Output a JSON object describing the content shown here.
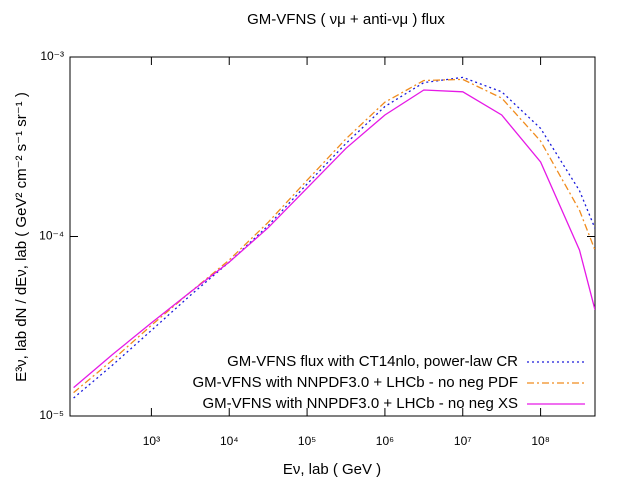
{
  "chart_data": {
    "type": "line",
    "title": "GM-VFNS    ( νμ + anti-νμ )    flux",
    "x_label": "Eν, lab    ( GeV )",
    "y_label": "E³ν, lab  dN / dEν, lab   ( GeV² cm⁻² s⁻¹ sr⁻¹ )",
    "x_log": true,
    "y_log": true,
    "xlim": [
      90,
      500000000
    ],
    "ylim": [
      1e-05,
      0.001
    ],
    "xticks": [
      {
        "value": 1000,
        "label": "10³"
      },
      {
        "value": 10000,
        "label": "10⁴"
      },
      {
        "value": 100000,
        "label": "10⁵"
      },
      {
        "value": 1000000,
        "label": "10⁶"
      },
      {
        "value": 10000000,
        "label": "10⁷"
      },
      {
        "value": 100000000,
        "label": "10⁸"
      }
    ],
    "yticks": [
      {
        "value": 1e-05,
        "label": "10⁻⁵"
      },
      {
        "value": 0.0001,
        "label": "10⁻⁴"
      },
      {
        "value": 0.001,
        "label": "10⁻³"
      }
    ],
    "legend": "bottom-right",
    "x": [
      100,
      316,
      1000,
      3162,
      10000,
      31623,
      100000,
      316228,
      1000000,
      3162278,
      10000000,
      31622777,
      100000000,
      316227766,
      500000000
    ],
    "series": [
      {
        "name": "GM-VFNS flux with CT14nlo, power-law CR",
        "color": "#1a1adb",
        "style": "dotted",
        "values": [
          1.26e-05,
          1.92e-05,
          3e-05,
          4.7e-05,
          7.2e-05,
          0.000115,
          0.000196,
          0.00033,
          0.00053,
          0.00072,
          0.00077,
          0.00064,
          0.0004,
          0.00018,
          0.000111
        ]
      },
      {
        "name": "GM-VFNS with NNPDF3.0 + LHCb - no neg PDF",
        "color": "#f08c1e",
        "style": "dash-dot",
        "values": [
          1.35e-05,
          2.05e-05,
          3.2e-05,
          4.9e-05,
          7.4e-05,
          0.00012,
          0.000206,
          0.00035,
          0.00056,
          0.00074,
          0.00075,
          0.00059,
          0.00034,
          0.00014,
          8.4e-05
        ]
      },
      {
        "name": "GM-VFNS with NNPDF3.0 + LHCb - no neg XS",
        "color": "#e619e6",
        "style": "solid",
        "values": [
          1.44e-05,
          2.2e-05,
          3.3e-05,
          4.9e-05,
          7.2e-05,
          0.000112,
          0.000186,
          0.00031,
          0.000475,
          0.000655,
          0.00064,
          0.000475,
          0.00026,
          8.4e-05,
          3.9e-05
        ]
      }
    ]
  }
}
